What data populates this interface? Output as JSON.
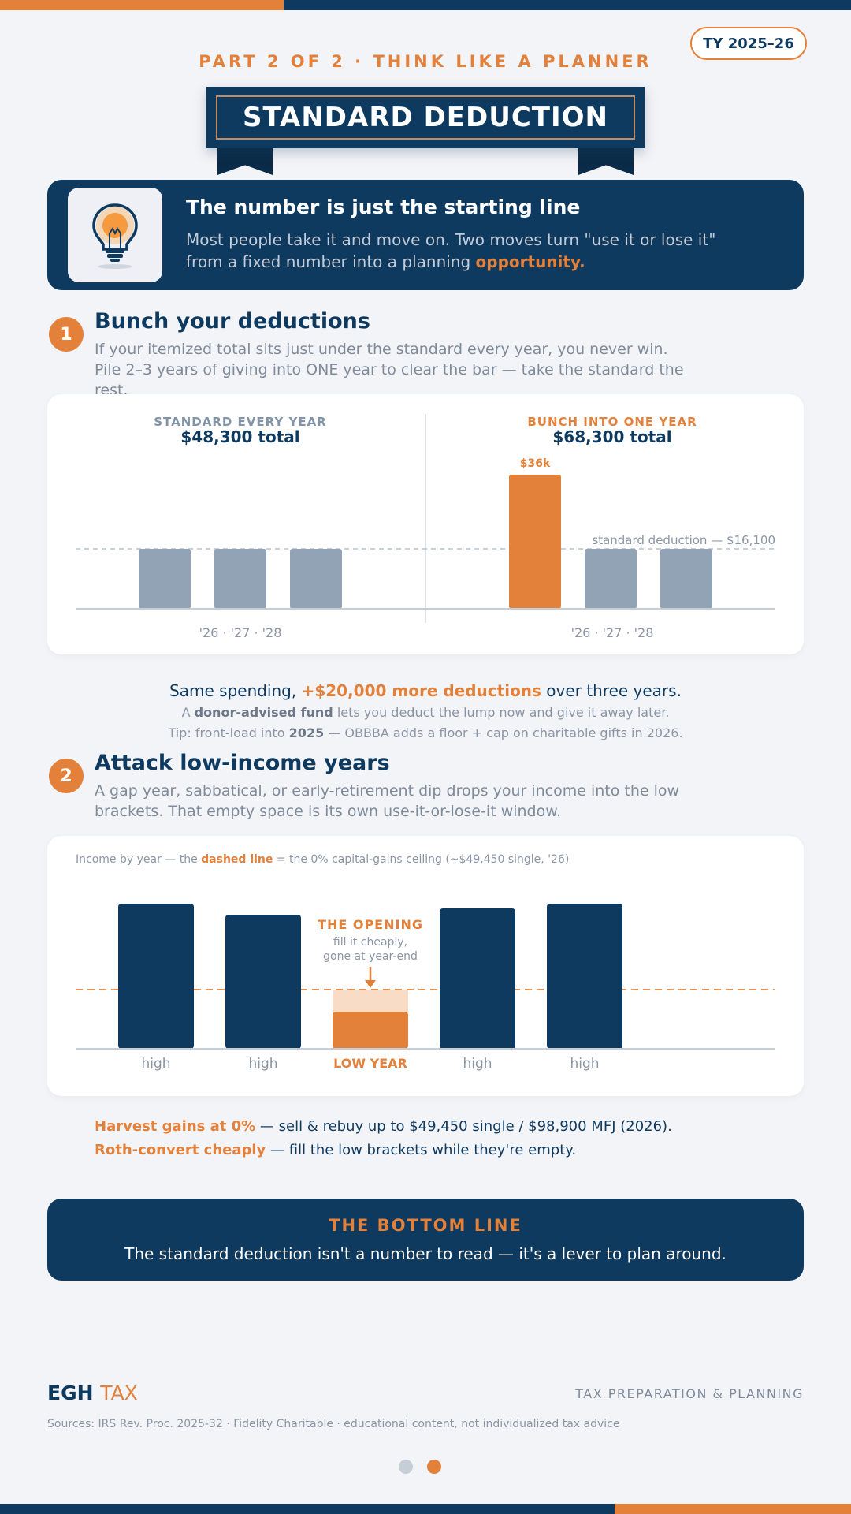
{
  "header": {
    "tax_year_badge": "TY 2025–26",
    "part_label": "PART 2 OF 2 · THINK LIKE A PLANNER",
    "title": "STANDARD DEDUCTION"
  },
  "intro": {
    "icon": "lightbulb-icon",
    "title": "The number is just the starting line",
    "text_before": "Most people take it and move on. Two moves turn \"use it or lose it\" from a fixed number into a planning ",
    "text_highlight": "opportunity."
  },
  "step1": {
    "number": "1",
    "heading": "Bunch your deductions",
    "body": "If your itemized total sits just under the standard every year, you never win. Pile 2–3 years of giving into ONE year to clear the bar — take the standard the rest.",
    "chart": {
      "left": {
        "label": "STANDARD EVERY YEAR",
        "total": "$48,300 total",
        "years": "'26 · '27 · '28"
      },
      "right": {
        "label": "BUNCH INTO ONE YEAR",
        "total": "$68,300 total",
        "years": "'26 · '27 · '28",
        "bar_label": "$36k"
      },
      "threshold_label": "standard deduction — $16,100"
    },
    "summary_before": "Same spending, ",
    "summary_highlight": "+$20,000 more deductions",
    "summary_after": " over three years.",
    "daf_before": "A ",
    "daf_bold": "donor-advised fund",
    "daf_after": " lets you deduct the lump now and give it away later.",
    "tip_before": "Tip: front-load into ",
    "tip_bold": "2025",
    "tip_after": " — OBBBA adds a floor + cap on charitable gifts in 2026."
  },
  "step2": {
    "number": "2",
    "heading": "Attack low-income years",
    "body": "A gap year, sabbatical, or early-retirement dip drops your income into the low brackets. That empty space is its own use-it-or-lose-it window.",
    "chart": {
      "caption_before": "Income by year — the ",
      "caption_bold": "dashed line",
      "caption_after": " = the 0% capital-gains ceiling (~$49,450 single, '26)",
      "opening_title": "THE OPENING",
      "opening_line1": "fill it cheaply,",
      "opening_line2": "gone at year-end",
      "labels": [
        "high",
        "high",
        "LOW YEAR",
        "high",
        "high"
      ]
    },
    "tip1_highlight": "Harvest gains at 0%",
    "tip1_rest": " — sell & rebuy up to $49,450 single / $98,900 MFJ (2026).",
    "tip2_highlight": "Roth-convert cheaply",
    "tip2_rest": " — fill the low brackets while they're empty."
  },
  "bottom_line": {
    "title": "THE BOTTOM LINE",
    "text": "The standard deduction isn't a number to read — it's a lever to plan around."
  },
  "footer": {
    "logo_main": "EGH",
    "logo_accent": "TAX",
    "tagline": "TAX PREPARATION & PLANNING",
    "sources": "Sources: IRS Rev. Proc. 2025-32 · Fidelity Charitable · educational content, not individualized tax advice"
  },
  "pagination": {
    "current_page": 2,
    "total_pages": 2
  },
  "colors": {
    "navy": "#0f3a5f",
    "orange": "#e3803a",
    "gray_bar": "#91a3b5",
    "background": "#f3f4f7"
  }
}
